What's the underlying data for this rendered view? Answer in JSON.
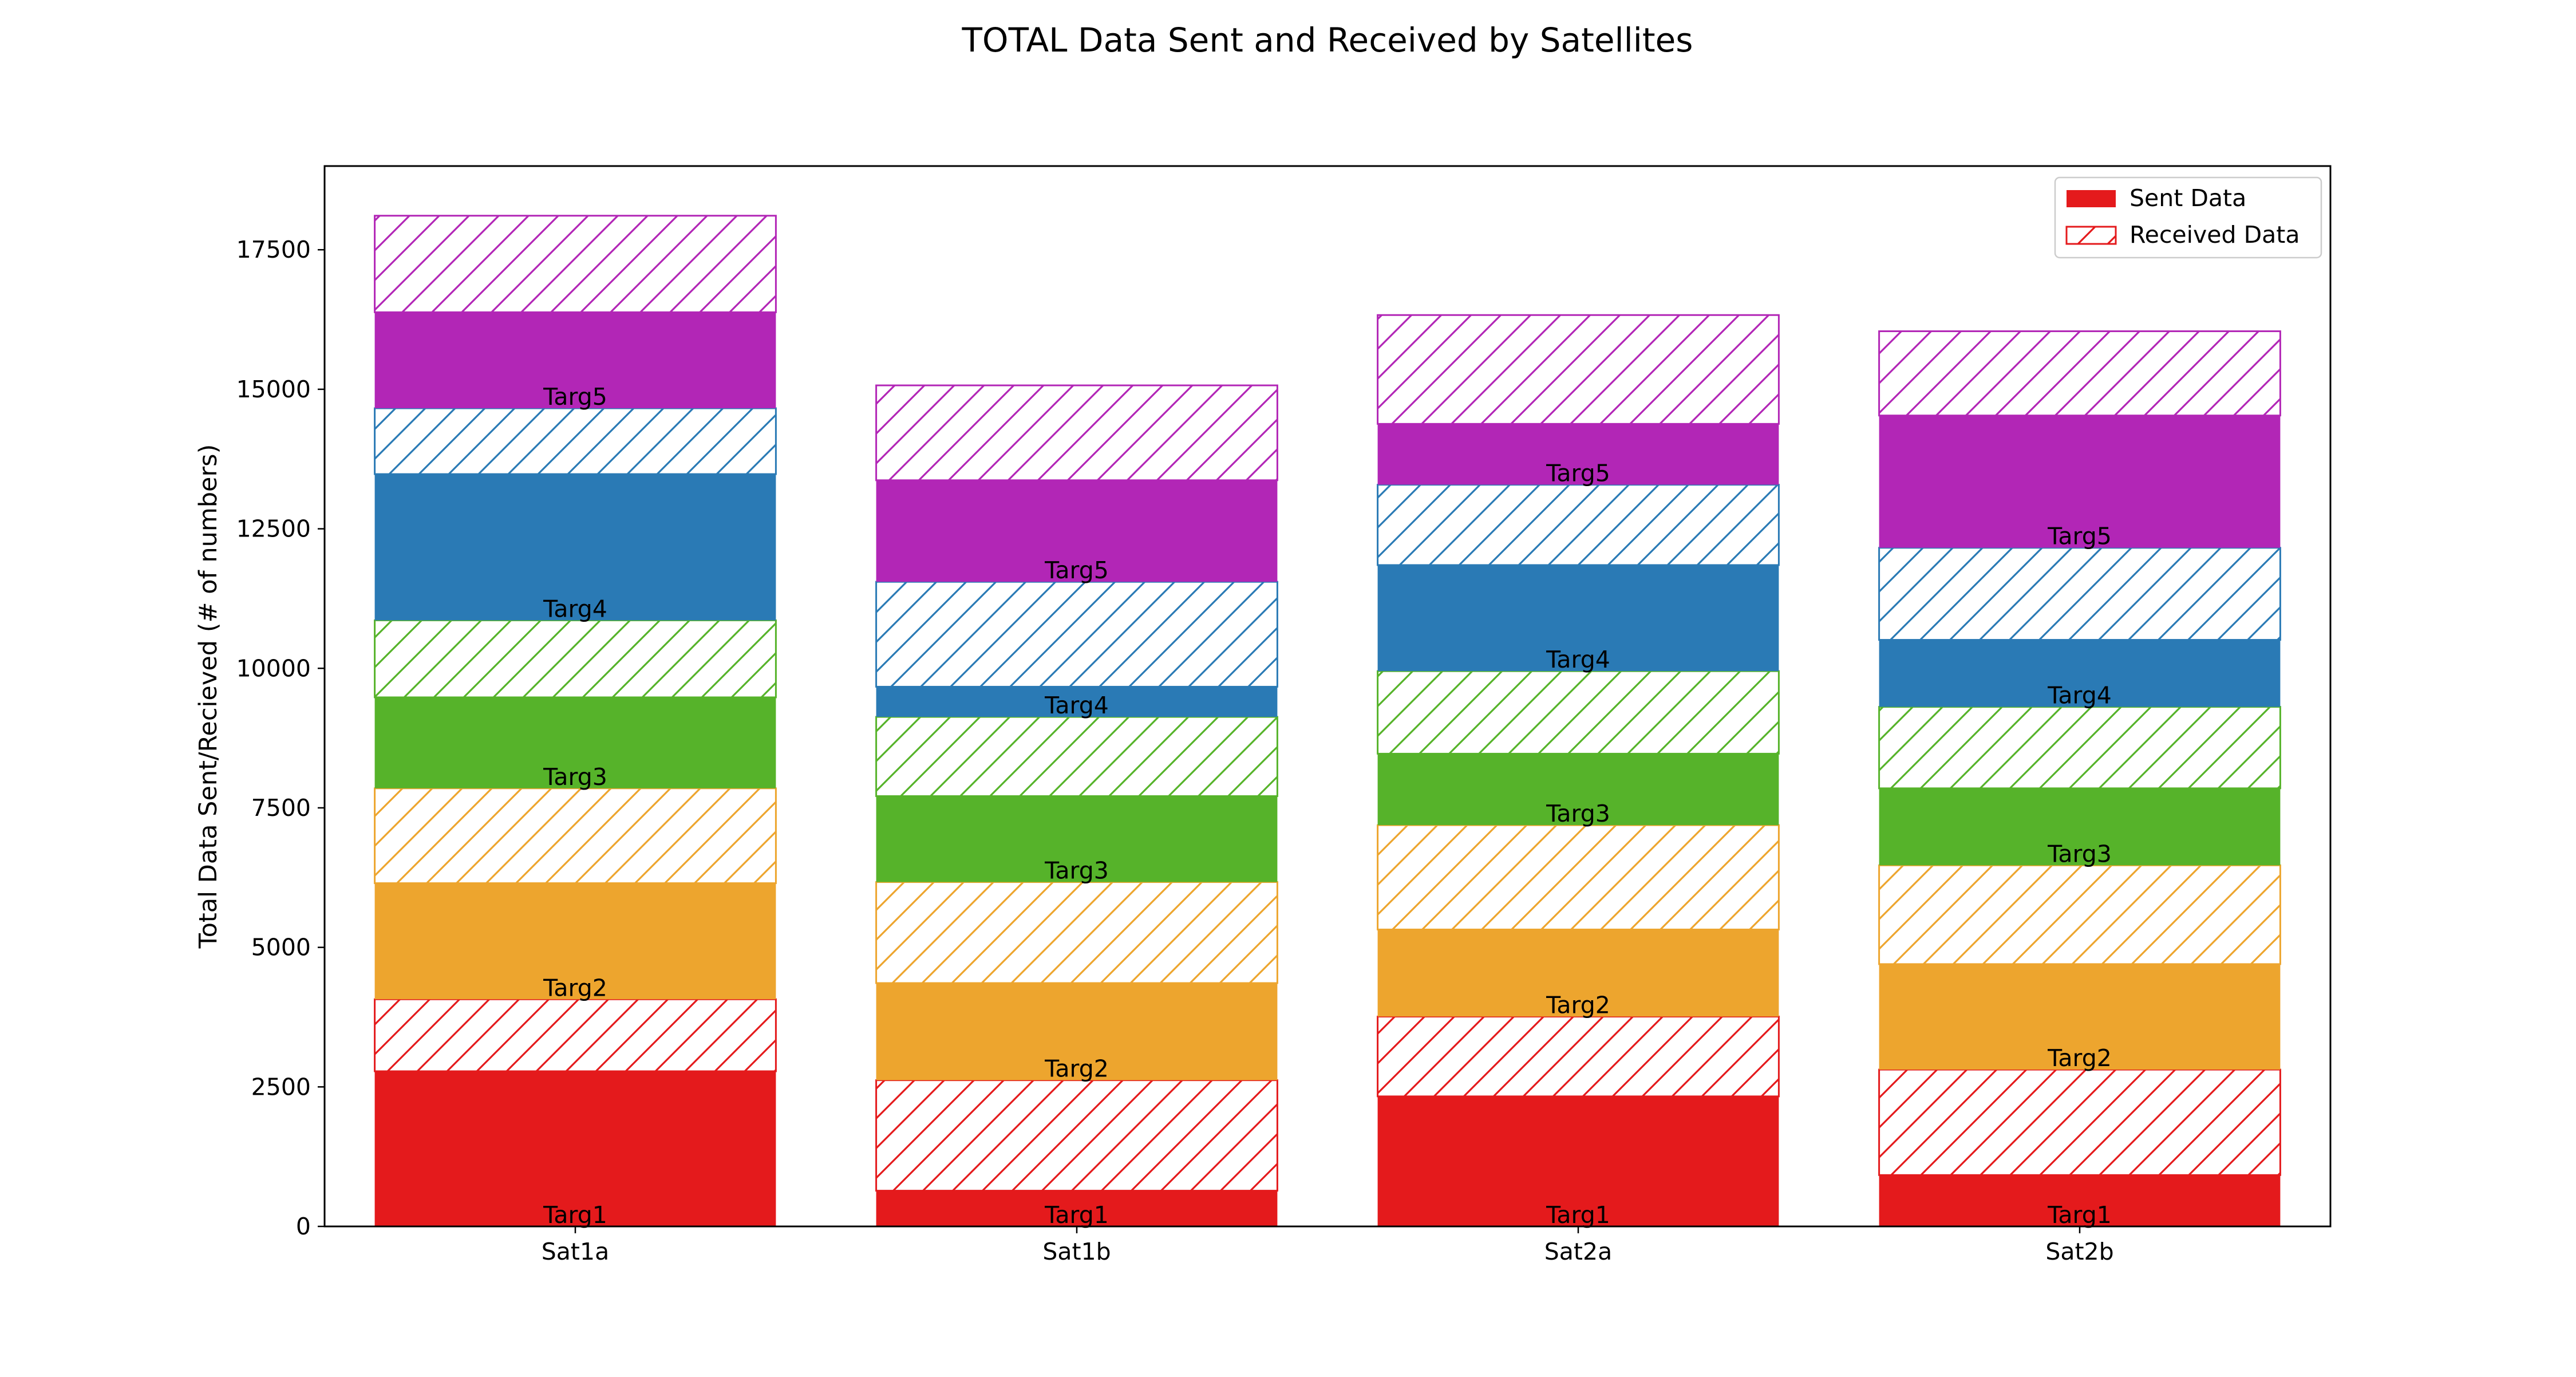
{
  "chart_data": {
    "type": "bar",
    "stacked": true,
    "title": "TOTAL Data Sent and Received by Satellites",
    "xlabel": "",
    "ylabel": "Total Data Sent/Recieved (# of numbers)",
    "categories": [
      "Sat1a",
      "Sat1b",
      "Sat2a",
      "Sat2b"
    ],
    "ylim": [
      0,
      19000
    ],
    "yticks": [
      0,
      2500,
      5000,
      7500,
      10000,
      12500,
      15000,
      17500
    ],
    "ytick_labels": [
      "0",
      "2500",
      "5000",
      "7500",
      "10000",
      "12500",
      "15000",
      "17500"
    ],
    "grid": false,
    "legend": {
      "position": "top-right",
      "entries": [
        {
          "label": "Sent Data",
          "style": "solid",
          "color": "#e41a1c"
        },
        {
          "label": "Received Data",
          "style": "hatched",
          "color": "#e41a1c"
        }
      ]
    },
    "target_labels": [
      "Targ1",
      "Targ2",
      "Targ3",
      "Targ4",
      "Targ5"
    ],
    "target_colors": [
      "#e41a1c",
      "#eda52e",
      "#56b32a",
      "#2a7ab5",
      "#b226b6"
    ],
    "series": [
      {
        "target": "Targ1",
        "kind": "sent",
        "values": [
          2780,
          640,
          2330,
          920
        ]
      },
      {
        "target": "Targ1",
        "kind": "received",
        "values": [
          1290,
          1980,
          1430,
          1890
        ]
      },
      {
        "target": "Targ2",
        "kind": "sent",
        "values": [
          2080,
          1740,
          1560,
          1890
        ]
      },
      {
        "target": "Targ2",
        "kind": "received",
        "values": [
          1700,
          1810,
          1870,
          1770
        ]
      },
      {
        "target": "Targ3",
        "kind": "sent",
        "values": [
          1630,
          1540,
          1280,
          1380
        ]
      },
      {
        "target": "Targ3",
        "kind": "received",
        "values": [
          1380,
          1420,
          1480,
          1460
        ]
      },
      {
        "target": "Targ4",
        "kind": "sent",
        "values": [
          2620,
          540,
          1900,
          1200
        ]
      },
      {
        "target": "Targ4",
        "kind": "received",
        "values": [
          1180,
          1880,
          1440,
          1650
        ]
      },
      {
        "target": "Targ5",
        "kind": "sent",
        "values": [
          1720,
          1820,
          1090,
          2370
        ]
      },
      {
        "target": "Targ5",
        "kind": "received",
        "values": [
          1730,
          1700,
          1950,
          1510
        ]
      }
    ]
  }
}
